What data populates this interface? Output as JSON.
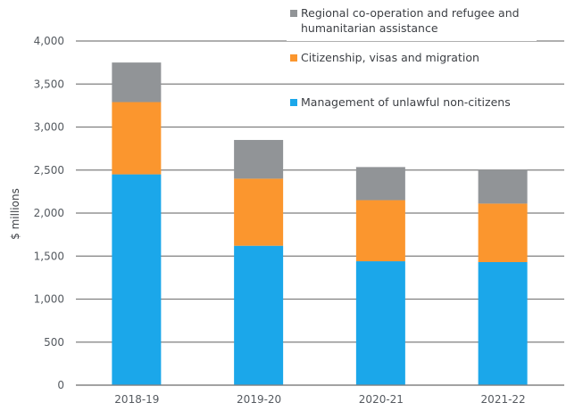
{
  "chart_data": {
    "type": "bar",
    "stacked": true,
    "title": "",
    "xlabel": "",
    "ylabel": "$ millions",
    "ylim": [
      0,
      4000
    ],
    "yticks": [
      0,
      500,
      1000,
      1500,
      2000,
      2500,
      3000,
      3500,
      4000
    ],
    "ytick_labels": [
      "0",
      "500",
      "1,000",
      "1,500",
      "2,000",
      "2,500",
      "3,000",
      "3,500",
      "4,000"
    ],
    "grid": true,
    "legend_position": "top-right",
    "categories": [
      "2018-19",
      "2019-20",
      "2020-21",
      "2021-22"
    ],
    "series": [
      {
        "name": "Management of unlawful non-citizens",
        "color": "#1ba7ea",
        "values": [
          2450,
          1620,
          1440,
          1430
        ]
      },
      {
        "name": "Citizenship, visas and migration",
        "color": "#fb962e",
        "values": [
          840,
          780,
          710,
          680
        ]
      },
      {
        "name": "Regional co-operation and refugee and humanitarian assistance",
        "color": "#919497",
        "values": [
          460,
          450,
          385,
          390
        ]
      }
    ],
    "legend": [
      {
        "lines": [
          "Regional co-operation and refugee and",
          "humanitarian assistance"
        ],
        "color": "#919497"
      },
      {
        "lines": [
          "Citizenship, visas and migration"
        ],
        "color": "#fb962e"
      },
      {
        "lines": [
          "Management of unlawful non-citizens"
        ],
        "color": "#1ba7ea"
      }
    ]
  }
}
